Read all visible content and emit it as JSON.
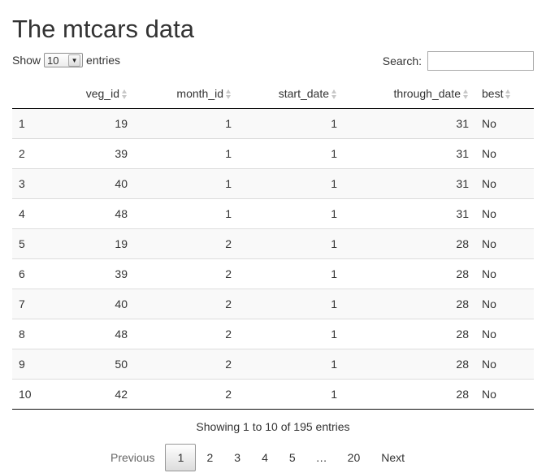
{
  "page": {
    "title": "The mtcars data"
  },
  "length_control": {
    "show_label": "Show",
    "selected": "10",
    "entries_label": "entries"
  },
  "search": {
    "label": "Search:",
    "value": "",
    "placeholder": ""
  },
  "table": {
    "headers": [
      "",
      "veg_id",
      "month_id",
      "start_date",
      "through_date",
      "best"
    ],
    "rows": [
      [
        "1",
        "19",
        "1",
        "1",
        "31",
        "No"
      ],
      [
        "2",
        "39",
        "1",
        "1",
        "31",
        "No"
      ],
      [
        "3",
        "40",
        "1",
        "1",
        "31",
        "No"
      ],
      [
        "4",
        "48",
        "1",
        "1",
        "31",
        "No"
      ],
      [
        "5",
        "19",
        "2",
        "1",
        "28",
        "No"
      ],
      [
        "6",
        "39",
        "2",
        "1",
        "28",
        "No"
      ],
      [
        "7",
        "40",
        "2",
        "1",
        "28",
        "No"
      ],
      [
        "8",
        "48",
        "2",
        "1",
        "28",
        "No"
      ],
      [
        "9",
        "50",
        "2",
        "1",
        "28",
        "No"
      ],
      [
        "10",
        "42",
        "2",
        "1",
        "28",
        "No"
      ]
    ]
  },
  "info": {
    "text": "Showing 1 to 10 of 195 entries"
  },
  "pagination": {
    "previous": "Previous",
    "pages": [
      "1",
      "2",
      "3",
      "4",
      "5"
    ],
    "ellipsis": "…",
    "last": "20",
    "next": "Next",
    "current": "1"
  }
}
